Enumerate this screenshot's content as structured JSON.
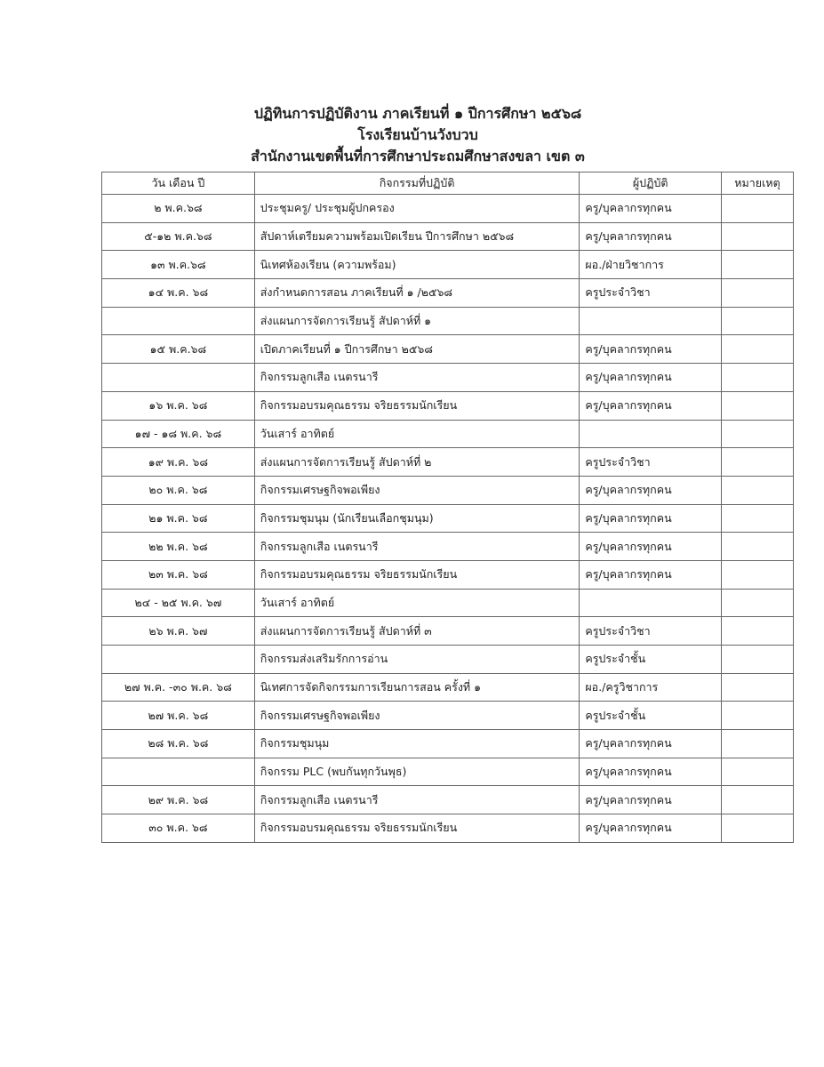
{
  "header": {
    "title": "ปฏิทินการปฏิบัติงาน  ภาคเรียนที่ ๑ ปีการศึกษา ๒๕๖๘",
    "school": "โรงเรียนบ้านวังบวบ",
    "office": "สำนักงานเขตพื้นที่การศึกษาประถมศึกษาสงขลา เขต ๓"
  },
  "table": {
    "columns": [
      "วัน เดือน ปี",
      "กิจกรรมที่ปฏิบัติ",
      "ผู้ปฏิบัติ",
      "หมายเหตุ"
    ],
    "rows": [
      {
        "date": "๒ พ.ค.๖๘",
        "activity": "ประชุมครู/ ประชุมผู้ปกครอง",
        "by": "ครู/บุคลากรทุกคน",
        "note": ""
      },
      {
        "date": "๕-๑๒ พ.ค.๖๘",
        "activity": "สัปดาห์เตรียมความพร้อมเปิดเรียน ปีการศึกษา ๒๕๖๘",
        "by": "ครู/บุคลากรทุกคน",
        "note": ""
      },
      {
        "date": "๑๓ พ.ค.๖๘",
        "activity": "นิเทศห้องเรียน (ความพร้อม)",
        "by": "ผอ./ฝ่ายวิชาการ",
        "note": ""
      },
      {
        "date": "๑๔ พ.ค. ๖๘",
        "activity": "ส่งกำหนดการสอน ภาคเรียนที่ ๑ /๒๕๖๘",
        "by": "ครูประจำวิชา",
        "note": ""
      },
      {
        "date": "",
        "activity": "ส่งแผนการจัดการเรียนรู้ สัปดาห์ที่ ๑",
        "by": "",
        "note": ""
      },
      {
        "date": "๑๕ พ.ค.๖๘",
        "activity": "เปิดภาคเรียนที่ ๑ ปีการศึกษา ๒๕๖๘",
        "by": "ครู/บุคลากรทุกคน",
        "note": ""
      },
      {
        "date": "",
        "activity": "กิจกรรมลูกเสือ เนตรนารี",
        "by": "ครู/บุคลากรทุกคน",
        "note": ""
      },
      {
        "date": "๑๖ พ.ค. ๖๘",
        "activity": "กิจกรรมอบรมคุณธรรม  จริยธรรมนักเรียน",
        "by": "ครู/บุคลากรทุกคน",
        "note": ""
      },
      {
        "date": "๑๗ - ๑๘ พ.ค. ๖๘",
        "activity": "วันเสาร์ อาทิตย์",
        "by": "",
        "note": ""
      },
      {
        "date": "๑๙ พ.ค. ๖๘",
        "activity": "ส่งแผนการจัดการเรียนรู้ สัปดาห์ที่ ๒",
        "by": "ครูประจำวิชา",
        "note": ""
      },
      {
        "date": "๒๐ พ.ค. ๖๘",
        "activity": "กิจกรรมเศรษฐกิจพอเพียง",
        "by": "ครู/บุคลากรทุกคน",
        "note": ""
      },
      {
        "date": "๒๑ พ.ค. ๖๘",
        "activity": "กิจกรรมชุมนุม (นักเรียนเลือกชุมนุม)",
        "by": "ครู/บุคลากรทุกคน",
        "note": ""
      },
      {
        "date": "๒๒ พ.ค. ๖๘",
        "activity": "กิจกรรมลูกเสือ เนตรนารี",
        "by": "ครู/บุคลากรทุกคน",
        "note": ""
      },
      {
        "date": "๒๓ พ.ค. ๖๘",
        "activity": "กิจกรรมอบรมคุณธรรม  จริยธรรมนักเรียน",
        "by": "ครู/บุคลากรทุกคน",
        "note": ""
      },
      {
        "date": "๒๔ - ๒๕ พ.ค. ๖๗",
        "activity": "วันเสาร์ อาทิตย์",
        "by": "",
        "note": ""
      },
      {
        "date": "๒๖ พ.ค. ๖๗",
        "activity": "ส่งแผนการจัดการเรียนรู้ สัปดาห์ที่ ๓",
        "by": "ครูประจำวิชา",
        "note": ""
      },
      {
        "date": "",
        "activity": "กิจกรรมส่งเสริมรักการอ่าน",
        "by": "ครูประจำชั้น",
        "note": ""
      },
      {
        "date": "๒๗ พ.ค. -๓๐ พ.ค. ๖๘",
        "activity": "นิเทศการจัดกิจกรรมการเรียนการสอน ครั้งที่ ๑",
        "by": "ผอ./ครูวิชาการ",
        "note": ""
      },
      {
        "date": "๒๗ พ.ค. ๖๘",
        "activity": "กิจกรรมเศรษฐกิจพอเพียง",
        "by": "ครูประจำชั้น",
        "note": ""
      },
      {
        "date": "๒๘ พ.ค. ๖๘",
        "activity": "กิจกรรมชุมนุม",
        "by": "ครู/บุคลากรทุกคน",
        "note": ""
      },
      {
        "date": "",
        "activity": "กิจกรรม PLC (พบกันทุกวันพุธ)",
        "by": "ครู/บุคลากรทุกคน",
        "note": ""
      },
      {
        "date": "๒๙ พ.ค. ๖๘",
        "activity": "กิจกรรมลูกเสือ เนตรนารี",
        "by": "ครู/บุคลากรทุกคน",
        "note": ""
      },
      {
        "date": "๓๐ พ.ค. ๖๘",
        "activity": "กิจกรรมอบรมคุณธรรม  จริยธรรมนักเรียน",
        "by": "ครู/บุคลากรทุกคน",
        "note": ""
      }
    ]
  }
}
